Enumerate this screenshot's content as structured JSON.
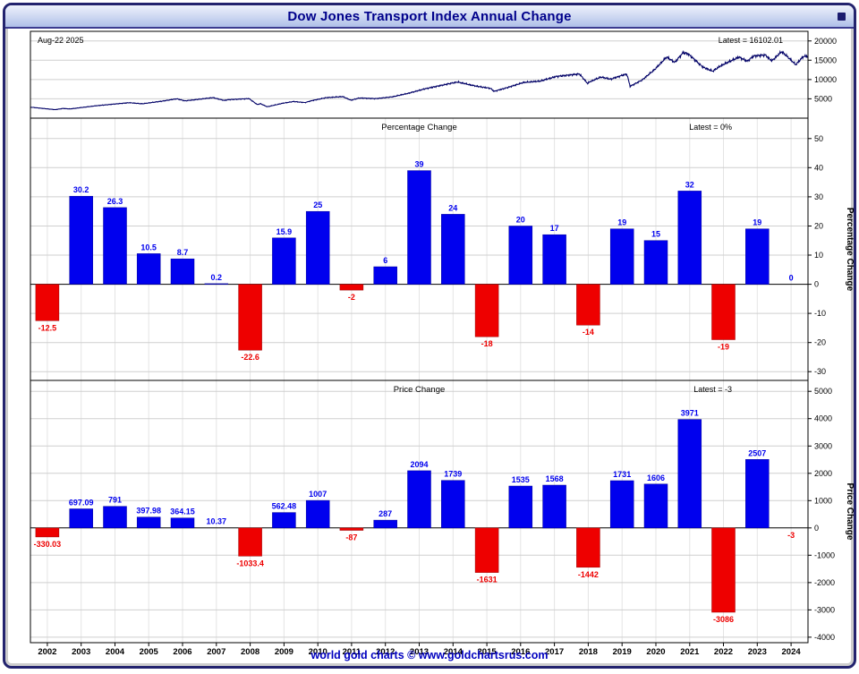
{
  "window": {
    "title": "Dow Jones Transport Index Annual Change",
    "footer": "world gold charts © www.goldchartsrus.com"
  },
  "colors": {
    "positive_bar": "#0000ee",
    "positive_edge": "#000099",
    "negative_bar": "#ee0000",
    "negative_edge": "#990000",
    "price_line": "#000066",
    "grid": "#cfcfcf",
    "grid_vertical": "#e4e4e4",
    "axis_text": "#000000",
    "zero_line": "#000000"
  },
  "x_axis_years": [
    2002,
    2003,
    2004,
    2005,
    2006,
    2007,
    2008,
    2009,
    2010,
    2011,
    2012,
    2013,
    2014,
    2015,
    2016,
    2017,
    2018,
    2019,
    2020,
    2021,
    2022,
    2023,
    2024
  ],
  "chart_data": [
    {
      "type": "line",
      "name": "price-history",
      "annotation_left": "Aug-22  2025",
      "annotation_right": "Latest = 16102.01",
      "ylim": [
        0,
        22500
      ],
      "yticks": [
        5000,
        10000,
        15000,
        20000
      ],
      "x_range": [
        2002,
        2025.65
      ],
      "x_keypoints": [
        2002.0,
        2002.75,
        2003.0,
        2003.2,
        2004.0,
        2005.0,
        2005.4,
        2006.0,
        2006.45,
        2006.7,
        2007.0,
        2007.55,
        2007.9,
        2008.0,
        2008.65,
        2008.9,
        2009.0,
        2009.2,
        2009.7,
        2010.0,
        2010.35,
        2010.55,
        2011.0,
        2011.5,
        2011.75,
        2012.0,
        2012.5,
        2013.0,
        2013.5,
        2014.0,
        2014.95,
        2015.0,
        2015.55,
        2016.0,
        2016.1,
        2016.5,
        2017.0,
        2017.5,
        2018.0,
        2018.7,
        2018.95,
        2019.0,
        2019.35,
        2019.65,
        2020.0,
        2020.14,
        2020.24,
        2020.6,
        2021.0,
        2021.35,
        2021.6,
        2021.85,
        2022.0,
        2022.45,
        2022.75,
        2023.0,
        2023.55,
        2023.8,
        2024.0,
        2024.35,
        2024.55,
        2024.85,
        2025.05,
        2025.28,
        2025.5,
        2025.65
      ],
      "y_keypoints": [
        2846,
        2200,
        2516,
        2380,
        3213,
        4004,
        3720,
        4402,
        5020,
        4480,
        4766,
        5320,
        4580,
        4777,
        5060,
        3520,
        3743,
        2950,
        3900,
        4306,
        4030,
        4520,
        5313,
        5580,
        4640,
        5226,
        5050,
        5513,
        6450,
        7607,
        9310,
        9346,
        8300,
        7715,
        6950,
        7900,
        9250,
        9600,
        10818,
        11450,
        8950,
        9376,
        10650,
        10100,
        11107,
        11420,
        8250,
        9850,
        12713,
        15850,
        14450,
        16970,
        16684,
        13250,
        12150,
        13598,
        15850,
        14750,
        16105,
        16350,
        14850,
        17250,
        15750,
        13850,
        15950,
        16102
      ]
    },
    {
      "type": "bar",
      "title": "Percentage Change",
      "annotation_right": "Latest = 0%",
      "ylabel": "Percentage Change",
      "ylim": [
        -33,
        57
      ],
      "yticks": [
        -30,
        -20,
        -10,
        0,
        10,
        20,
        30,
        40,
        50
      ],
      "categories": [
        2002,
        2003,
        2004,
        2005,
        2006,
        2007,
        2008,
        2009,
        2010,
        2011,
        2012,
        2013,
        2014,
        2015,
        2016,
        2017,
        2018,
        2019,
        2020,
        2021,
        2022,
        2023,
        2024
      ],
      "values": [
        -12.5,
        30.2,
        26.3,
        10.5,
        8.7,
        0.2,
        -22.6,
        15.9,
        25,
        -2,
        6,
        39,
        24,
        -18,
        20,
        17,
        -14,
        19,
        15,
        32,
        -19,
        19,
        0
      ]
    },
    {
      "type": "bar",
      "title": "Price Change",
      "annotation_right": "Latest = -3",
      "ylabel": "Price Change",
      "ylim": [
        -4200,
        5400
      ],
      "yticks": [
        -4000,
        -3000,
        -2000,
        -1000,
        0,
        1000,
        2000,
        3000,
        4000,
        5000
      ],
      "categories": [
        2002,
        2003,
        2004,
        2005,
        2006,
        2007,
        2008,
        2009,
        2010,
        2011,
        2012,
        2013,
        2014,
        2015,
        2016,
        2017,
        2018,
        2019,
        2020,
        2021,
        2022,
        2023,
        2024
      ],
      "values": [
        -330.03,
        697.09,
        791,
        397.98,
        364.15,
        10.37,
        -1033.4,
        562.48,
        1007,
        -87,
        287,
        2094,
        1739,
        -1631,
        1535,
        1568,
        -1442,
        1731,
        1606,
        3971,
        -3086,
        2507,
        -3
      ]
    }
  ]
}
